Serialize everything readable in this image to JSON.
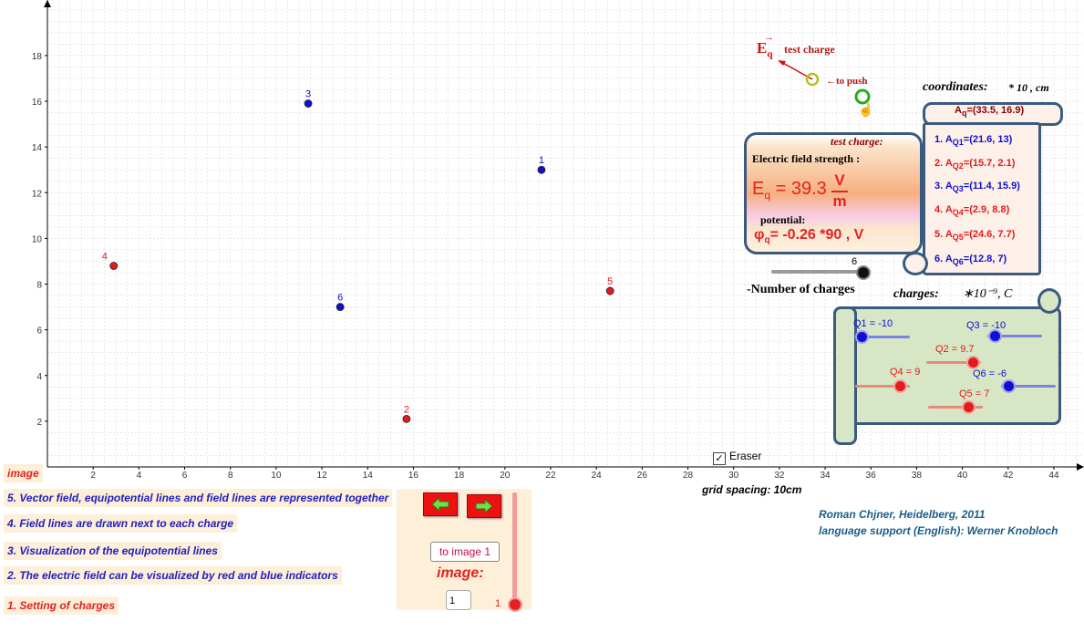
{
  "plot": {
    "x_ticks": [
      "2",
      "4",
      "6",
      "8",
      "10",
      "12",
      "14",
      "16",
      "18",
      "20",
      "22",
      "24",
      "26",
      "28",
      "30",
      "32",
      "34",
      "36",
      "38",
      "40",
      "42",
      "44"
    ],
    "y_ticks": [
      "2",
      "4",
      "6",
      "8",
      "10",
      "12",
      "14",
      "16",
      "18"
    ],
    "grid_spacing_label": "grid spacing: 10cm",
    "colors": {
      "positive": "#e31b1b",
      "negative": "#1010d0",
      "grid": "#d8d8d8"
    }
  },
  "charge_points": [
    {
      "label": "1",
      "x": 21.6,
      "y": 13,
      "sign": "negative"
    },
    {
      "label": "2",
      "x": 15.7,
      "y": 2.1,
      "sign": "positive"
    },
    {
      "label": "3",
      "x": 11.4,
      "y": 15.9,
      "sign": "negative"
    },
    {
      "label": "4",
      "x": 2.9,
      "y": 8.8,
      "sign": "positive"
    },
    {
      "label": "5",
      "x": 24.6,
      "y": 7.7,
      "sign": "positive"
    },
    {
      "label": "6",
      "x": 12.8,
      "y": 7,
      "sign": "negative"
    }
  ],
  "test_charge": {
    "label": "test charge",
    "push_label": "←to push",
    "vector_label": "E",
    "vector_sub": "q"
  },
  "info_panel": {
    "title": "test charge:",
    "field_label": "Electric field strength :",
    "field_value": "E",
    "field_sub": "q",
    "field_number": "= 39.3",
    "field_unit_num": "V",
    "field_unit_den": "m",
    "potential_label": "potential:",
    "potential_symbol": "φ",
    "potential_sub": "q",
    "potential_value": "= -0.26 *90 , V"
  },
  "num_charges": {
    "value": "6",
    "label": "-Number of charges",
    "fraction": 1.0
  },
  "coordinates": {
    "title": "coordinates:",
    "unit": "* 10  , cm",
    "test": {
      "prefix": "A",
      "sub": "q",
      "value": "=(33.5, 16.9)"
    },
    "rows": [
      {
        "num": "1.",
        "prefix": "A",
        "sub": "Q1",
        "value": "=(21.6, 13)",
        "color": "#1010d0"
      },
      {
        "num": "2.",
        "prefix": "A",
        "sub": "Q2",
        "value": "=(15.7, 2.1)",
        "color": "#e31b1b"
      },
      {
        "num": "3.",
        "prefix": "A",
        "sub": "Q3",
        "value": "=(11.4, 15.9)",
        "color": "#1010d0"
      },
      {
        "num": "4.",
        "prefix": "A",
        "sub": "Q4",
        "value": "=(2.9, 8.8)",
        "color": "#e31b1b"
      },
      {
        "num": "5.",
        "prefix": "A",
        "sub": "Q5",
        "value": "=(24.6, 7.7)",
        "color": "#e31b1b"
      },
      {
        "num": "6.",
        "prefix": "A",
        "sub": "Q6",
        "value": "=(12.8, 7)",
        "color": "#1010d0"
      }
    ]
  },
  "charges": {
    "title": "charges:",
    "unit": "∗10⁻⁹, C",
    "sliders": [
      {
        "label": "Q1 = -10",
        "value": -10
      },
      {
        "label": "Q2 = 9.7",
        "value": 9.7
      },
      {
        "label": "Q3 = -10",
        "value": -10
      },
      {
        "label": "Q4 = 9",
        "value": 9
      },
      {
        "label": "Q5 = 7",
        "value": 7
      },
      {
        "label": "Q6 = -6",
        "value": -6
      }
    ]
  },
  "eraser": {
    "label": "Eraser",
    "checked": "✓"
  },
  "menu": {
    "header": "image",
    "items": [
      "5. Vector field, equipotential lines  and field lines are represented together",
      "4. Field lines are drawn next to each charge",
      "3. Visualization of the equipotential lines",
      "2. The electric field can be visualized by red and blue indicators",
      "1. Setting of charges"
    ]
  },
  "image_control": {
    "to_image_label": "to image 1",
    "image_label": "image:",
    "input_value": "1",
    "slider_value": "1",
    "prev_icon": "left-arrow-icon",
    "next_icon": "right-arrow-icon"
  },
  "credits": {
    "author": "Roman Chjner, Heidelberg, 2011",
    "language": "language support (English):  Werner Knobloch"
  }
}
